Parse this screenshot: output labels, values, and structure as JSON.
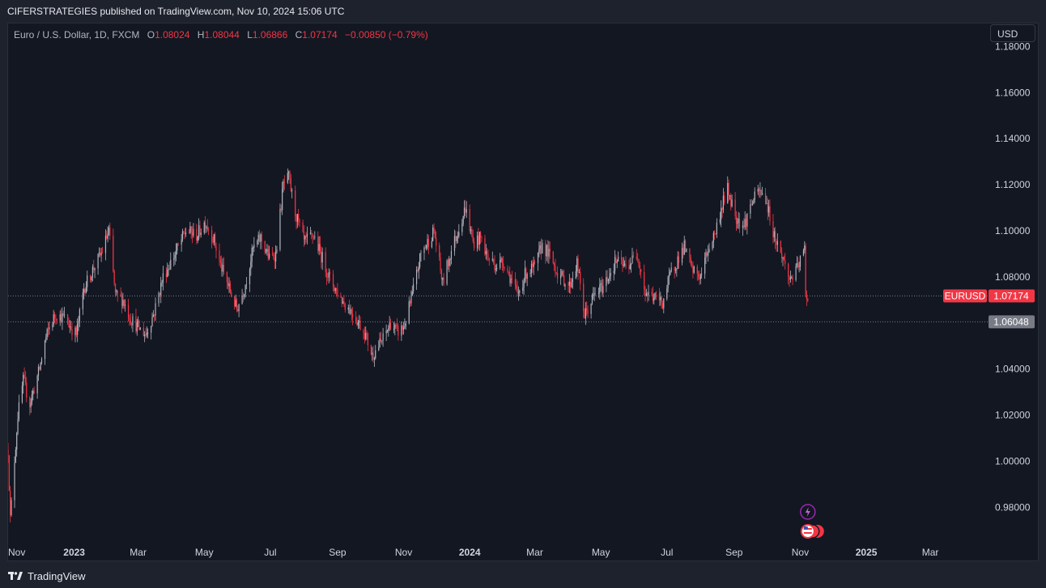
{
  "header": {
    "published_by": "CIFERSTRATEGIES published on TradingView.com, Nov 10, 2024 15:06 UTC"
  },
  "legend": {
    "symbol": "Euro / U.S. Dollar, 1D, FXCM",
    "open_key": "O",
    "open": "1.08024",
    "high_key": "H",
    "high": "1.08044",
    "low_key": "L",
    "low": "1.06866",
    "close_key": "C",
    "close": "1.07174",
    "change": "−0.00850 (−0.79%)"
  },
  "currency_button": "USD",
  "footer": {
    "brand": "TradingView"
  },
  "colors": {
    "up": "#b2b5be",
    "down": "#f23645",
    "background": "#131722",
    "price_label": "#f23645",
    "ref_label": "#787b86"
  },
  "chart_data": {
    "type": "candlestick",
    "symbol": "EURUSD",
    "interval": "1D",
    "ylim": [
      0.965,
      1.19
    ],
    "y_ticks": [
      "1.18000",
      "1.16000",
      "1.14000",
      "1.12000",
      "1.10000",
      "1.08000",
      "1.04000",
      "1.02000",
      "1.00000",
      "0.98000"
    ],
    "x_ticks": [
      {
        "label": "Nov",
        "date": "2022-11-01",
        "bold": false
      },
      {
        "label": "2023",
        "date": "2023-01-01",
        "bold": true
      },
      {
        "label": "Mar",
        "date": "2023-03-01",
        "bold": false
      },
      {
        "label": "May",
        "date": "2023-05-01",
        "bold": false
      },
      {
        "label": "Jul",
        "date": "2023-07-01",
        "bold": false
      },
      {
        "label": "Sep",
        "date": "2023-09-01",
        "bold": false
      },
      {
        "label": "Nov",
        "date": "2023-11-01",
        "bold": false
      },
      {
        "label": "2024",
        "date": "2024-01-01",
        "bold": true
      },
      {
        "label": "Mar",
        "date": "2024-03-01",
        "bold": false
      },
      {
        "label": "May",
        "date": "2024-05-01",
        "bold": false
      },
      {
        "label": "Jul",
        "date": "2024-07-01",
        "bold": false
      },
      {
        "label": "Sep",
        "date": "2024-09-01",
        "bold": false
      },
      {
        "label": "Nov",
        "date": "2024-11-01",
        "bold": false
      },
      {
        "label": "2025",
        "date": "2025-01-01",
        "bold": true
      },
      {
        "label": "Mar",
        "date": "2025-03-01",
        "bold": false
      }
    ],
    "x_range": [
      "2022-11-01",
      "2025-04-23"
    ],
    "price_path": [
      [
        "2022-11-01",
        1.005
      ],
      [
        "2022-11-03",
        0.975
      ],
      [
        "2022-11-10",
        1.02
      ],
      [
        "2022-11-15",
        1.035
      ],
      [
        "2022-11-21",
        1.025
      ],
      [
        "2022-11-30",
        1.04
      ],
      [
        "2022-12-05",
        1.052
      ],
      [
        "2022-12-09",
        1.058
      ],
      [
        "2022-12-15",
        1.064
      ],
      [
        "2022-12-23",
        1.062
      ],
      [
        "2023-01-03",
        1.055
      ],
      [
        "2023-01-10",
        1.075
      ],
      [
        "2023-01-20",
        1.085
      ],
      [
        "2023-01-26",
        1.09
      ],
      [
        "2023-02-02",
        1.1
      ],
      [
        "2023-02-08",
        1.072
      ],
      [
        "2023-02-15",
        1.07
      ],
      [
        "2023-02-22",
        1.062
      ],
      [
        "2023-03-01",
        1.058
      ],
      [
        "2023-03-08",
        1.055
      ],
      [
        "2023-03-16",
        1.065
      ],
      [
        "2023-03-24",
        1.08
      ],
      [
        "2023-04-04",
        1.09
      ],
      [
        "2023-04-14",
        1.1
      ],
      [
        "2023-04-24",
        1.098
      ],
      [
        "2023-05-02",
        1.104
      ],
      [
        "2023-05-10",
        1.096
      ],
      [
        "2023-05-16",
        1.085
      ],
      [
        "2023-05-24",
        1.075
      ],
      [
        "2023-05-31",
        1.066
      ],
      [
        "2023-06-07",
        1.075
      ],
      [
        "2023-06-15",
        1.092
      ],
      [
        "2023-06-22",
        1.097
      ],
      [
        "2023-06-30",
        1.088
      ],
      [
        "2023-07-06",
        1.09
      ],
      [
        "2023-07-13",
        1.12
      ],
      [
        "2023-07-18",
        1.123
      ],
      [
        "2023-07-24",
        1.108
      ],
      [
        "2023-08-01",
        1.095
      ],
      [
        "2023-08-10",
        1.098
      ],
      [
        "2023-08-18",
        1.088
      ],
      [
        "2023-08-25",
        1.079
      ],
      [
        "2023-09-05",
        1.07
      ],
      [
        "2023-09-14",
        1.065
      ],
      [
        "2023-09-26",
        1.056
      ],
      [
        "2023-10-03",
        1.046
      ],
      [
        "2023-10-13",
        1.053
      ],
      [
        "2023-10-20",
        1.06
      ],
      [
        "2023-10-26",
        1.056
      ],
      [
        "2023-11-01",
        1.058
      ],
      [
        "2023-11-08",
        1.07
      ],
      [
        "2023-11-17",
        1.09
      ],
      [
        "2023-11-29",
        1.1
      ],
      [
        "2023-12-07",
        1.077
      ],
      [
        "2023-12-14",
        1.09
      ],
      [
        "2023-12-21",
        1.1
      ],
      [
        "2023-12-28",
        1.11
      ],
      [
        "2024-01-04",
        1.095
      ],
      [
        "2024-01-11",
        1.097
      ],
      [
        "2024-01-18",
        1.088
      ],
      [
        "2024-01-26",
        1.085
      ],
      [
        "2024-02-01",
        1.087
      ],
      [
        "2024-02-09",
        1.078
      ],
      [
        "2024-02-14",
        1.072
      ],
      [
        "2024-02-22",
        1.082
      ],
      [
        "2024-03-01",
        1.084
      ],
      [
        "2024-03-08",
        1.094
      ],
      [
        "2024-03-15",
        1.089
      ],
      [
        "2024-03-22",
        1.082
      ],
      [
        "2024-04-02",
        1.076
      ],
      [
        "2024-04-09",
        1.086
      ],
      [
        "2024-04-16",
        1.063
      ],
      [
        "2024-04-25",
        1.072
      ],
      [
        "2024-05-03",
        1.076
      ],
      [
        "2024-05-15",
        1.087
      ],
      [
        "2024-05-24",
        1.084
      ],
      [
        "2024-06-04",
        1.09
      ],
      [
        "2024-06-11",
        1.073
      ],
      [
        "2024-06-20",
        1.071
      ],
      [
        "2024-06-27",
        1.069
      ],
      [
        "2024-07-05",
        1.082
      ],
      [
        "2024-07-17",
        1.093
      ],
      [
        "2024-07-24",
        1.083
      ],
      [
        "2024-08-01",
        1.08
      ],
      [
        "2024-08-08",
        1.092
      ],
      [
        "2024-08-15",
        1.1
      ],
      [
        "2024-08-22",
        1.113
      ],
      [
        "2024-08-26",
        1.118
      ],
      [
        "2024-09-03",
        1.106
      ],
      [
        "2024-09-10",
        1.102
      ],
      [
        "2024-09-17",
        1.112
      ],
      [
        "2024-09-24",
        1.117
      ],
      [
        "2024-09-30",
        1.114
      ],
      [
        "2024-10-08",
        1.098
      ],
      [
        "2024-10-16",
        1.088
      ],
      [
        "2024-10-22",
        1.079
      ],
      [
        "2024-10-28",
        1.082
      ],
      [
        "2024-11-01",
        1.087
      ],
      [
        "2024-11-05",
        1.092
      ],
      [
        "2024-11-06",
        1.071
      ],
      [
        "2024-11-08",
        1.072
      ]
    ],
    "last_price": {
      "label": "EURUSD",
      "value": "1.07174",
      "y": 1.07174
    },
    "reference_price": {
      "value": "1.06048",
      "y": 1.06048
    }
  }
}
